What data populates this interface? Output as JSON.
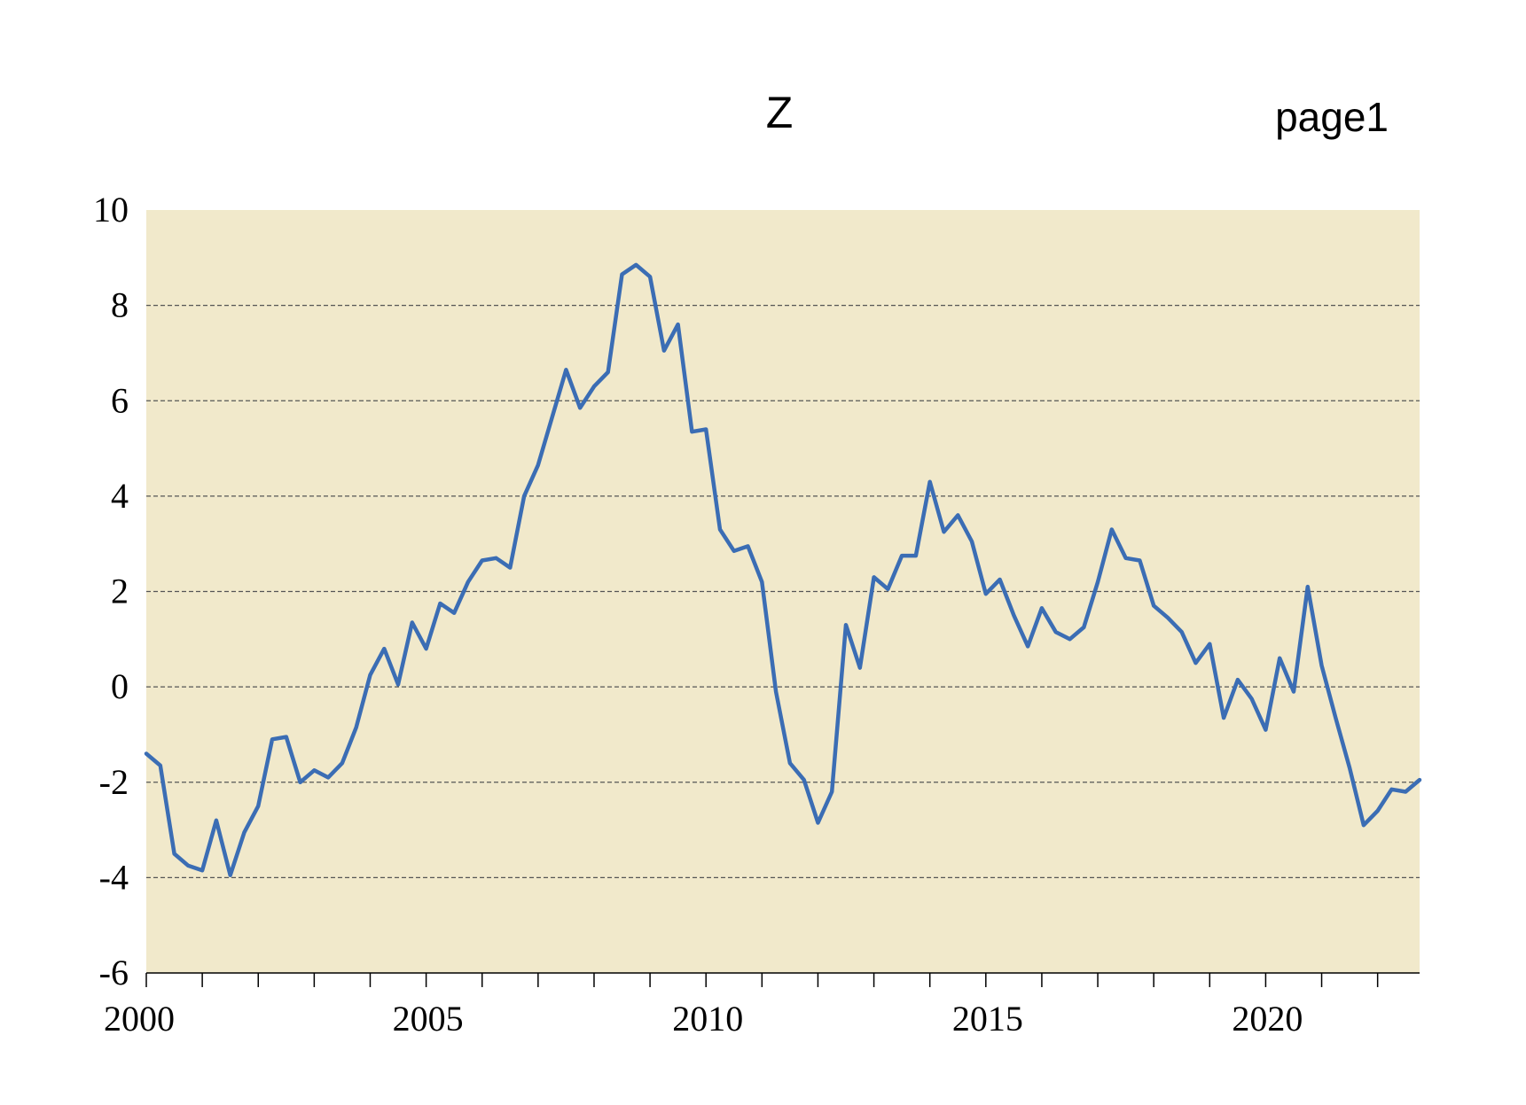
{
  "page": {
    "title": "Z",
    "page_label": "page1"
  },
  "colors": {
    "plot_background": "#f1e9cb",
    "series": "#3b6db4",
    "grid": "#555555"
  },
  "chart_data": {
    "type": "line",
    "title": "Z",
    "xlabel": "",
    "ylabel": "",
    "xlim": [
      2000,
      2022.75
    ],
    "ylim": [
      -6,
      10
    ],
    "grid": {
      "y": true,
      "x": false,
      "style": "dashed"
    },
    "y_ticks": [
      10,
      8,
      6,
      4,
      2,
      0,
      -2,
      -4,
      -6
    ],
    "y_tick_labels": [
      "10",
      "8",
      "6",
      "4",
      "2",
      "0",
      "-2",
      "-4",
      "-6"
    ],
    "x_ticks": [
      2000,
      2005,
      2010,
      2015,
      2020
    ],
    "x_tick_labels": [
      "2000",
      "2005",
      "2010",
      "2015",
      "2020"
    ],
    "x_minor_ticks": [
      2000,
      2001,
      2002,
      2003,
      2004,
      2005,
      2006,
      2007,
      2008,
      2009,
      2010,
      2011,
      2012,
      2013,
      2014,
      2015,
      2016,
      2017,
      2018,
      2019,
      2020,
      2021,
      2022
    ],
    "series": [
      {
        "x": [
          "2000Q1",
          "2000Q2",
          "2000Q3",
          "2000Q4",
          "2001Q1",
          "2001Q2",
          "2001Q3",
          "2001Q4",
          "2002Q1",
          "2002Q2",
          "2002Q3",
          "2002Q4",
          "2003Q1",
          "2003Q2",
          "2003Q3",
          "2003Q4",
          "2004Q1",
          "2004Q2",
          "2004Q3",
          "2004Q4",
          "2005Q1",
          "2005Q2",
          "2005Q3",
          "2005Q4",
          "2006Q1",
          "2006Q2",
          "2006Q3",
          "2006Q4",
          "2007Q1",
          "2007Q2",
          "2007Q3",
          "2007Q4",
          "2008Q1",
          "2008Q2",
          "2008Q3",
          "2008Q4",
          "2009Q1",
          "2009Q2",
          "2009Q3",
          "2009Q4",
          "2010Q1",
          "2010Q2",
          "2010Q3",
          "2010Q4",
          "2011Q1",
          "2011Q2",
          "2011Q3",
          "2011Q4",
          "2012Q1",
          "2012Q2",
          "2012Q3",
          "2012Q4",
          "2013Q1",
          "2013Q2",
          "2013Q3",
          "2013Q4",
          "2014Q1",
          "2014Q2",
          "2014Q3",
          "2014Q4",
          "2015Q1",
          "2015Q2",
          "2015Q3",
          "2015Q4",
          "2016Q1",
          "2016Q2",
          "2016Q3",
          "2016Q4",
          "2017Q1",
          "2017Q2",
          "2017Q3",
          "2017Q4",
          "2018Q1",
          "2018Q2",
          "2018Q3",
          "2018Q4",
          "2019Q1",
          "2019Q2",
          "2019Q3",
          "2019Q4",
          "2020Q1",
          "2020Q2",
          "2020Q3",
          "2020Q4",
          "2021Q1",
          "2021Q2",
          "2021Q3",
          "2021Q4",
          "2022Q1",
          "2022Q2",
          "2022Q3",
          "2022Q4"
        ],
        "values": [
          -1.4,
          -1.65,
          -3.5,
          -3.75,
          -3.85,
          -2.8,
          -3.95,
          -3.05,
          -2.5,
          -1.1,
          -1.05,
          -2.0,
          -1.75,
          -1.9,
          -1.6,
          -0.85,
          0.25,
          0.8,
          0.05,
          1.35,
          0.8,
          1.75,
          1.55,
          2.2,
          2.65,
          2.7,
          2.5,
          4.0,
          4.65,
          5.65,
          6.65,
          5.85,
          6.3,
          6.6,
          8.65,
          8.85,
          8.6,
          7.05,
          7.6,
          5.35,
          5.4,
          3.3,
          2.85,
          2.95,
          2.2,
          -0.1,
          -1.6,
          -1.95,
          -2.85,
          -2.2,
          1.3,
          0.4,
          2.3,
          2.05,
          2.75,
          2.75,
          4.3,
          3.25,
          3.6,
          3.05,
          1.95,
          2.25,
          1.5,
          0.85,
          1.65,
          1.15,
          1.0,
          1.25,
          2.2,
          3.3,
          2.7,
          2.65,
          1.7,
          1.45,
          1.15,
          0.5,
          0.9,
          -0.65,
          0.15,
          -0.25,
          -0.9,
          0.6,
          -0.1,
          2.1,
          0.45,
          -0.65,
          -1.7,
          -2.9,
          -2.6,
          -2.15,
          -2.2,
          -1.95
        ]
      }
    ]
  }
}
